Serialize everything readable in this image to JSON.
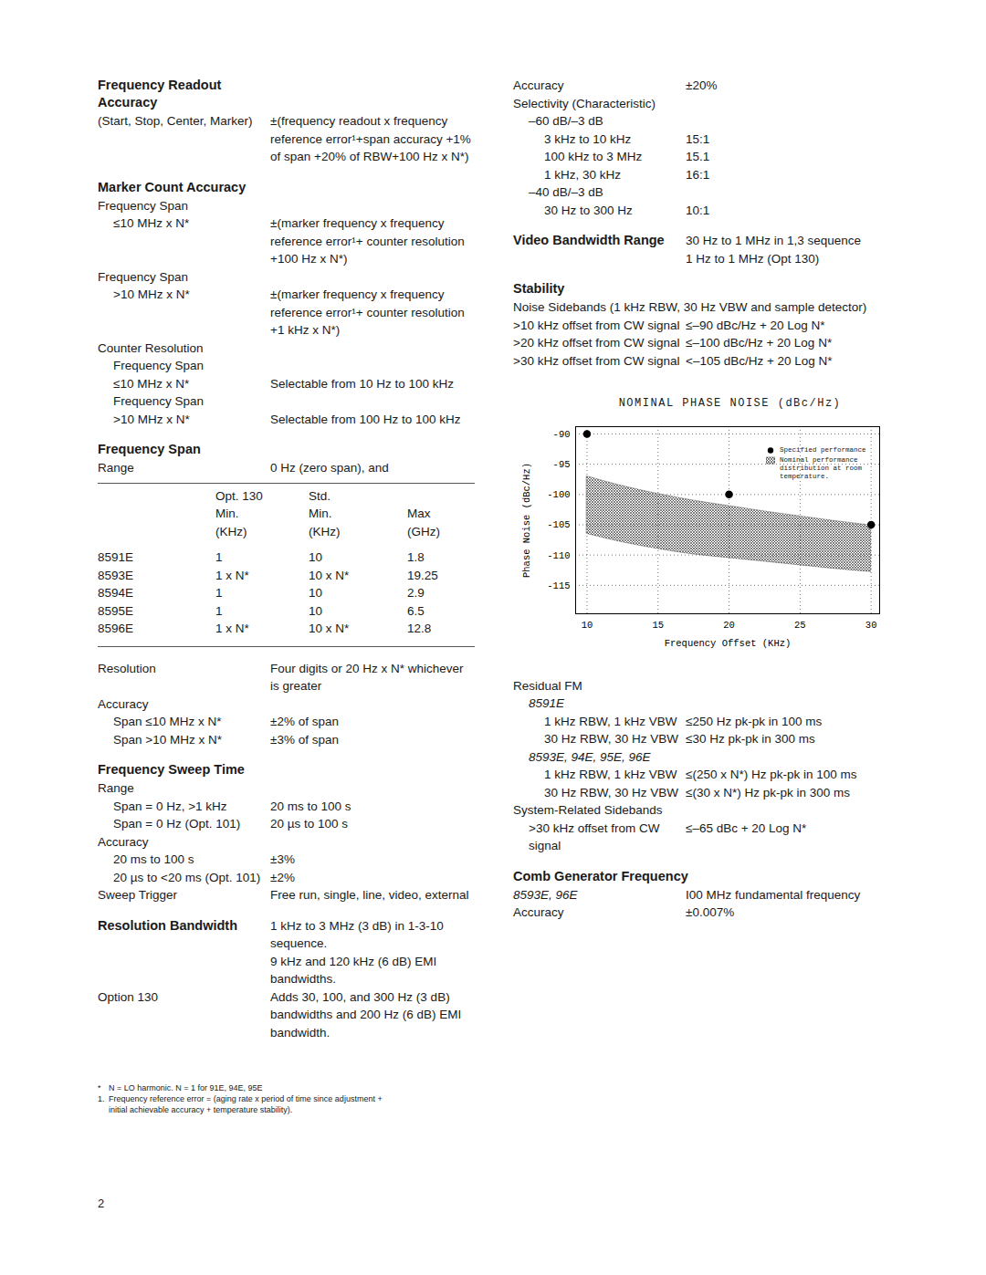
{
  "left": [
    {
      "heading": "Frequency Readout\nAccuracy",
      "items": [
        {
          "label": "(Start, Stop, Center, Marker)",
          "value": "±(frequency readout x frequency reference error¹+span accuracy +1% of span +20% of RBW+100 Hz x N*)"
        }
      ]
    },
    {
      "heading": "Marker Count Accuracy",
      "items": [
        {
          "label": "Frequency Span",
          "children": [
            {
              "label": "≤10 MHz x N*",
              "value": "±(marker frequency x frequency reference error¹+ counter resolution +100 Hz x N*)"
            }
          ]
        },
        {
          "label": "Frequency Span",
          "children": [
            {
              "label": ">10 MHz x N*",
              "value": "±(marker frequency x frequency reference error¹+ counter resolution +1 kHz x N*)"
            }
          ]
        },
        {
          "label": "Counter Resolution",
          "children": [
            {
              "label": "Frequency Span"
            },
            {
              "label": "≤10 MHz x N*",
              "value": "Selectable from 10 Hz to 100 kHz"
            },
            {
              "label": "Frequency Span"
            },
            {
              "label": ">10 MHz x N*",
              "value": "Selectable from 100 Hz to 100 kHz"
            }
          ]
        }
      ]
    },
    {
      "heading": "Frequency Span",
      "items": [
        {
          "label": "Range",
          "value": "0 Hz (zero span), and"
        },
        {
          "table": {
            "header": [
              [
                "",
                "Opt. 130",
                "Std.",
                ""
              ],
              [
                "",
                "Min.",
                "Min.",
                "Max"
              ],
              [
                "",
                "(KHz)",
                "(KHz)",
                "(GHz)"
              ]
            ],
            "rows": [
              [
                "8591E",
                "1",
                "10",
                "1.8"
              ],
              [
                "8593E",
                "1 x N*",
                "10 x N*",
                "19.25"
              ],
              [
                "8594E",
                "1",
                "10",
                "2.9"
              ],
              [
                "8595E",
                "1",
                "10",
                "6.5"
              ],
              [
                "8596E",
                "1 x N*",
                "10 x N*",
                "12.8"
              ]
            ]
          }
        },
        {
          "label": "Resolution",
          "value": "Four digits or 20 Hz x N* whichever is greater"
        },
        {
          "label": "Accuracy",
          "children": [
            {
              "label": "Span ≤10 MHz x N*",
              "value": "±2% of span"
            },
            {
              "label": "Span >10 MHz x N*",
              "value": "±3% of span"
            }
          ]
        }
      ]
    },
    {
      "heading": "Frequency Sweep Time",
      "items": [
        {
          "label": "Range",
          "children": [
            {
              "label": "Span = 0 Hz, >1 kHz",
              "value": "20 ms to 100 s"
            },
            {
              "label": "Span = 0 Hz (Opt. 101)",
              "value": "20 µs to 100 s"
            }
          ]
        },
        {
          "label": "Accuracy",
          "children": [
            {
              "label": "20 ms to 100 s",
              "value": "±3%"
            },
            {
              "label": "20 µs to <20 ms (Opt. 101)",
              "value": "±2%"
            }
          ]
        },
        {
          "label": "Sweep Trigger",
          "value": "Free run, single, line, video, external"
        }
      ]
    },
    {
      "heading": "Resolution Bandwidth",
      "value": [
        "1 kHz to 3 MHz (3 dB) in 1-3-10 sequence.",
        "9 kHz and 120 kHz (6 dB) EMI bandwidths."
      ],
      "items": [
        {
          "label": "Option 130",
          "value": "Adds 30, 100, and 300 Hz (3 dB) bandwidths and 200 Hz (6 dB) EMI bandwidth."
        }
      ]
    }
  ],
  "right_before_chart": [
    {
      "items": [
        {
          "label": "Accuracy",
          "value": "±20%"
        },
        {
          "label": "Selectivity (Characteristic)",
          "children": [
            {
              "label": "–60 dB/–3 dB",
              "children": [
                {
                  "label": "3 kHz to 10 kHz",
                  "value": "15:1"
                },
                {
                  "label": "100 kHz to 3 MHz",
                  "value": "15.1"
                },
                {
                  "label": "1 kHz, 30 kHz",
                  "value": "16:1"
                }
              ]
            },
            {
              "label": "–40 dB/–3 dB",
              "children": [
                {
                  "label": "30 Hz to 300 Hz",
                  "value": "10:1"
                }
              ]
            }
          ]
        }
      ]
    },
    {
      "heading": "Video Bandwidth Range",
      "value": [
        "30 Hz to 1 MHz in 1,3 sequence",
        "1 Hz to 1 MHz (Opt 130)"
      ],
      "items": []
    },
    {
      "heading": "Stability",
      "items": [
        {
          "label": "Noise Sidebands (1 kHz RBW, 30 Hz VBW and sample detector)"
        },
        {
          "label": ">10 kHz offset from CW signal",
          "value": "≤–90 dBc/Hz + 20 Log N*"
        },
        {
          "label": ">20 kHz offset from CW signal",
          "value": "≤–100 dBc/Hz + 20 Log N*"
        },
        {
          "label": ">30 kHz offset from CW signal",
          "value": "<–105 dBc/Hz + 20 Log N*"
        }
      ]
    }
  ],
  "chart_data": {
    "type": "area",
    "title": "NOMINAL PHASE NOISE (dBc/Hz)",
    "x_label": "Frequency Offset (KHz)",
    "y_label": "Phase Noise (dBc/Hz)",
    "xlim": [
      9.2,
      30.6
    ],
    "xticks": [
      10,
      15,
      20,
      25,
      30
    ],
    "ylim": [
      -119.7,
      -88.8
    ],
    "yticks": [
      -90,
      -95,
      -100,
      -105,
      -110,
      -115
    ],
    "grid": true,
    "legend": "top-right",
    "series": [
      {
        "name": "Specified performance",
        "type": "scatter",
        "marker": "circle",
        "color": "#000000",
        "x": [
          10,
          20,
          30
        ],
        "values": [
          -90,
          -100,
          -105
        ]
      },
      {
        "name": "Nominal performance distribution at room temperature.",
        "type": "area",
        "color": "#000000",
        "x": [
          10,
          12.5,
          15,
          17.5,
          20,
          22.5,
          25,
          27.5,
          30
        ],
        "values_high": [
          -97,
          -98.6,
          -99.9,
          -101,
          -101.9,
          -102.8,
          -103.6,
          -104.4,
          -105.1
        ],
        "values_low": [
          -106.5,
          -107.9,
          -109,
          -109.9,
          -110.5,
          -111.1,
          -111.7,
          -112.3,
          -112.8
        ]
      }
    ]
  },
  "right_after_chart": [
    {
      "items": [
        {
          "label": "Residual FM",
          "children": [
            {
              "subheading": "8591E",
              "children": [
                {
                  "label": "1 kHz RBW, 1 kHz VBW",
                  "value": "≤250 Hz pk-pk in 100 ms"
                },
                {
                  "label": "30 Hz RBW, 30 Hz VBW",
                  "value": "≤30 Hz pk-pk in 300 ms"
                }
              ]
            },
            {
              "subheading": "8593E, 94E, 95E, 96E",
              "children": [
                {
                  "label": "1 kHz RBW, 1 kHz VBW",
                  "value": "≤(250 x N*) Hz pk-pk in 100 ms"
                },
                {
                  "label": "30 Hz RBW, 30 Hz VBW",
                  "value": "≤(30 x N*) Hz pk-pk in 300 ms"
                }
              ]
            }
          ]
        },
        {
          "label": "System-Related Sidebands",
          "children": [
            {
              "label": ">30 kHz offset from CW signal",
              "value": "≤–65 dBc + 20 Log N*"
            }
          ]
        }
      ]
    },
    {
      "heading": "Comb Generator Frequency",
      "items": [
        {
          "subheading": "8593E, 96E",
          "value": "I00 MHz fundamental frequency"
        },
        {
          "label": "Accuracy",
          "value": "±0.007%"
        }
      ]
    }
  ],
  "footnotes": [
    {
      "mark": "*",
      "text": "N = LO harmonic. N = 1 for 91E, 94E, 95E"
    },
    {
      "mark": "1.",
      "text": "Frequency reference error = (aging rate x period of time since adjustment + initial achievable accuracy + temperature stability)."
    }
  ],
  "page_number": "2"
}
